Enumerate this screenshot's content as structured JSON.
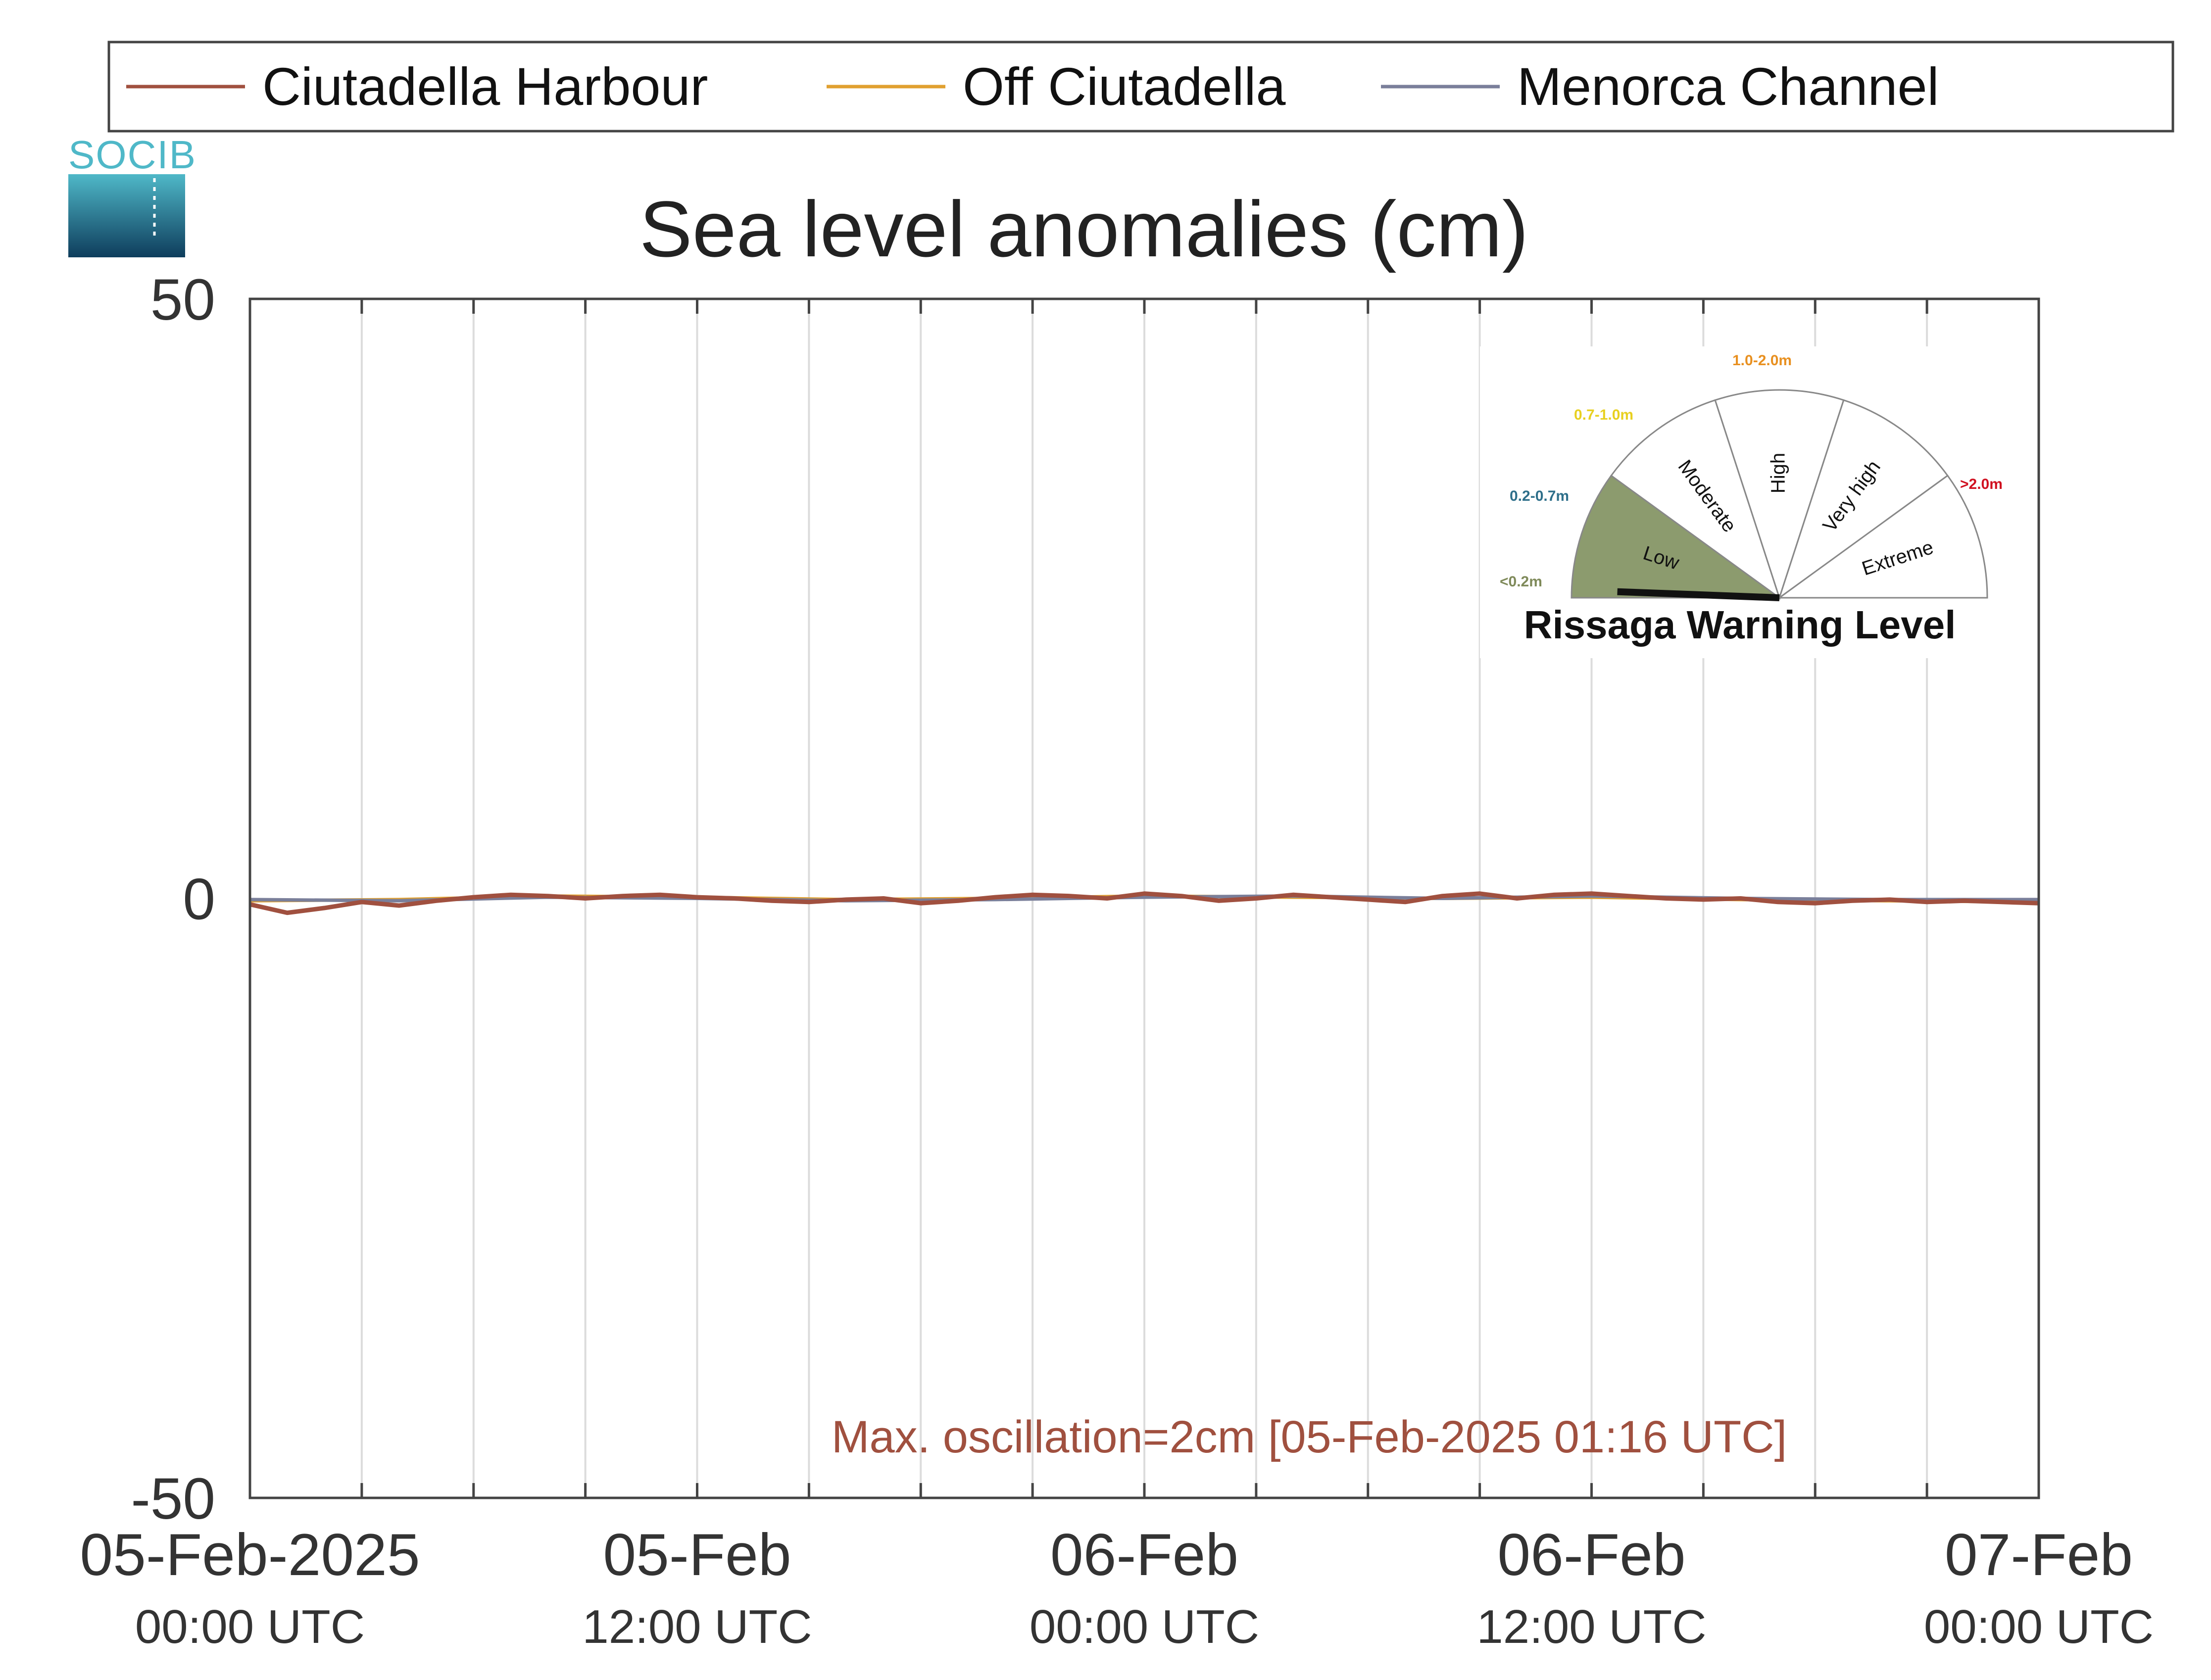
{
  "logo": {
    "text": "SOCIB"
  },
  "chart_data": {
    "type": "line",
    "title": "Sea level anomalies (cm)",
    "xlabel": "",
    "ylabel": "",
    "ylim": [
      -50,
      50
    ],
    "yticks": [
      50,
      0,
      -50
    ],
    "xlim_hours": [
      0,
      48
    ],
    "xticks": [
      {
        "hour": 0,
        "date": "05-Feb-2025",
        "time": "00:00 UTC"
      },
      {
        "hour": 12,
        "date": "05-Feb",
        "time": "12:00 UTC"
      },
      {
        "hour": 24,
        "date": "06-Feb",
        "time": "00:00 UTC"
      },
      {
        "hour": 36,
        "date": "06-Feb",
        "time": "12:00 UTC"
      },
      {
        "hour": 48,
        "date": "07-Feb",
        "time": "00:00 UTC"
      }
    ],
    "grid": true,
    "legend_position": "top",
    "series": [
      {
        "name": "Ciutadella Harbour",
        "color": "#a0503f",
        "x_hours": [
          0,
          1,
          2,
          3,
          4,
          5,
          6,
          7,
          8,
          9,
          10,
          11,
          12,
          13,
          14,
          15,
          16,
          17,
          18,
          19,
          20,
          21,
          22,
          23,
          24,
          25,
          26,
          27,
          28,
          29,
          30,
          31,
          32,
          33,
          34,
          35,
          36,
          37,
          38,
          39,
          40,
          41,
          42,
          43,
          44,
          45,
          46,
          47,
          48
        ],
        "values": [
          -0.5,
          -1.2,
          -0.8,
          -0.3,
          -0.6,
          -0.2,
          0.1,
          0.3,
          0.2,
          0.0,
          0.2,
          0.3,
          0.1,
          0.0,
          -0.2,
          -0.3,
          -0.1,
          0.0,
          -0.4,
          -0.2,
          0.1,
          0.3,
          0.2,
          0.0,
          0.4,
          0.2,
          -0.2,
          0.0,
          0.3,
          0.1,
          -0.1,
          -0.3,
          0.2,
          0.4,
          0.0,
          0.3,
          0.4,
          0.2,
          0.0,
          -0.1,
          0.0,
          -0.3,
          -0.4,
          -0.2,
          -0.1,
          -0.3,
          -0.2,
          -0.3,
          -0.4
        ]
      },
      {
        "name": "Off Ciutadella",
        "color": "#e0a030",
        "x_hours": [
          0,
          4,
          8,
          12,
          16,
          20,
          24,
          28,
          32,
          36,
          40,
          44,
          48
        ],
        "values": [
          -0.2,
          -0.1,
          0.2,
          0.1,
          -0.1,
          0.0,
          0.2,
          0.1,
          0.0,
          0.1,
          -0.1,
          -0.2,
          -0.3
        ]
      },
      {
        "name": "Menorca Channel",
        "color": "#7a7f9a",
        "x_hours": [
          0,
          4,
          8,
          12,
          16,
          20,
          24,
          28,
          32,
          36,
          40,
          44,
          48
        ],
        "values": [
          -0.1,
          -0.2,
          0.1,
          0.0,
          -0.2,
          -0.1,
          0.1,
          0.2,
          0.0,
          0.2,
          0.0,
          -0.1,
          -0.1
        ]
      }
    ],
    "annotation": {
      "text": "Max. oscillation=2cm [05-Feb-2025 01:16 UTC]",
      "color": "#a0503f"
    }
  },
  "warning_gauge": {
    "title": "Rissaga Warning Level",
    "current_level": "Low",
    "sectors": [
      {
        "label": "Low",
        "range": "<0.2m",
        "range_color": "#7f8a5a",
        "fill": "#8c9b6e"
      },
      {
        "label": "Moderate",
        "range": "0.2-0.7m",
        "range_color": "#2e6f8a",
        "fill": "#ffffff"
      },
      {
        "label": "High",
        "range": "0.7-1.0m",
        "range_color": "#e8d020",
        "fill": "#ffffff"
      },
      {
        "label": "Very high",
        "range": "1.0-2.0m",
        "range_color": "#e89020",
        "fill": "#ffffff"
      },
      {
        "label": "Extreme",
        "range": ">2.0m",
        "range_color": "#d01020",
        "fill": "#ffffff"
      }
    ]
  }
}
